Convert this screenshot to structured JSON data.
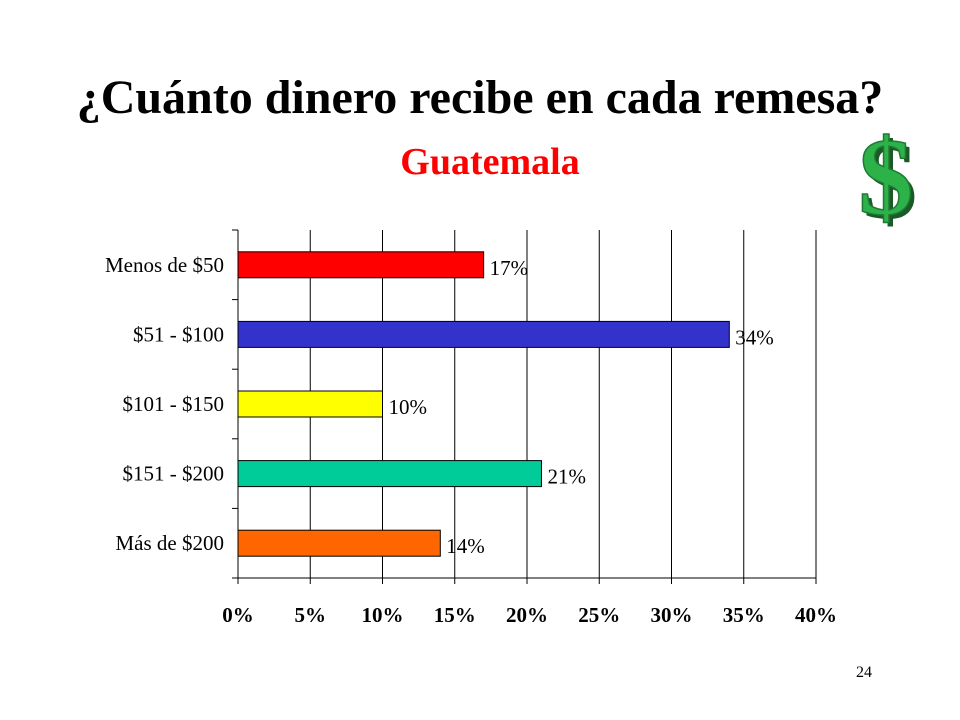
{
  "slide": {
    "title": "¿Cuánto dinero recibe en cada remesa?",
    "subtitle": "Guatemala",
    "page_number": "24",
    "icon": "dollar-sign-icon",
    "title_color": "#000000",
    "subtitle_color": "#ff0000",
    "icon_color": "#2db24a"
  },
  "chart_data": {
    "type": "bar",
    "orientation": "horizontal",
    "title": "",
    "xlabel": "",
    "ylabel": "",
    "categories": [
      "Menos de $50",
      "$51 - $100",
      "$101 - $150",
      "$151 - $200",
      "Más de $200"
    ],
    "values": [
      17,
      34,
      10,
      21,
      14
    ],
    "value_labels": [
      "17%",
      "34%",
      "10%",
      "21%",
      "14%"
    ],
    "colors": [
      "#ff0000",
      "#3333cc",
      "#ffff00",
      "#00cc99",
      "#ff6600"
    ],
    "xlim": [
      0,
      40
    ],
    "x_ticks": [
      "0%",
      "5%",
      "10%",
      "15%",
      "20%",
      "25%",
      "30%",
      "35%",
      "40%"
    ],
    "grid": "vertical",
    "legend": "none"
  }
}
